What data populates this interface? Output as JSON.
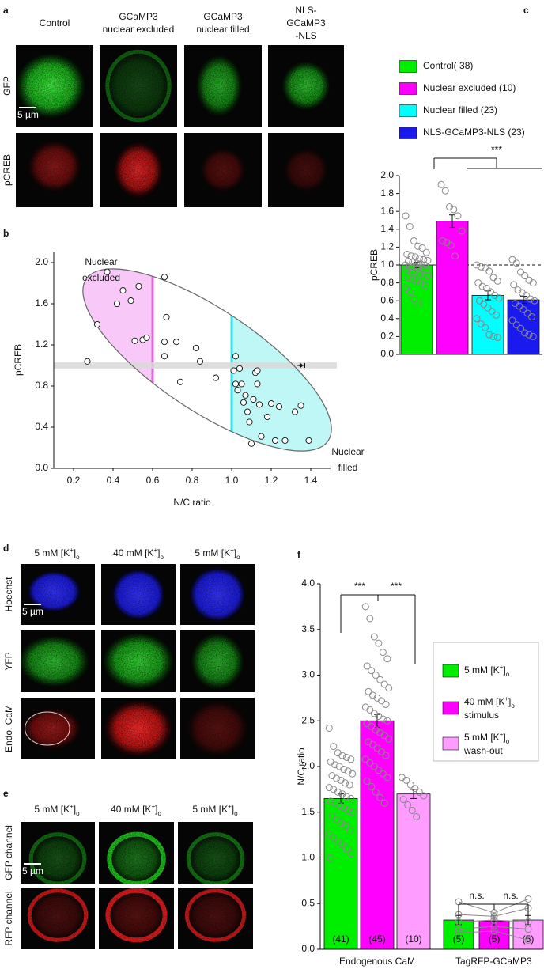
{
  "panel_labels": [
    "a",
    "b",
    "c",
    "d",
    "e",
    "f"
  ],
  "panel_a": {
    "columns": [
      [
        "Control"
      ],
      [
        "GCaMP3",
        "nuclear excluded"
      ],
      [
        "GCaMP3",
        "nuclear filled"
      ],
      [
        "NLS-",
        "GCaMP3",
        "-NLS"
      ]
    ],
    "rows": [
      "GFP",
      "pCREB"
    ],
    "scale_bar": "5 µm"
  },
  "panel_d": {
    "columns": [
      [
        "5 mM [K",
        "+",
        "]",
        "o"
      ],
      [
        "40 mM [K",
        "+",
        "]",
        "o"
      ],
      [
        "5 mM [K",
        "+",
        "]",
        "o"
      ]
    ],
    "rows": [
      "Hoechst",
      "YFP",
      "Endo. CaM"
    ],
    "scale_bar": "5 µm"
  },
  "panel_e": {
    "columns": [
      [
        "5 mM [K",
        "+",
        "]",
        "o"
      ],
      [
        "40 mM [K",
        "+",
        "]",
        "o"
      ],
      [
        "5 mM [K",
        "+",
        "]",
        "o"
      ]
    ],
    "rows": [
      "GFP channel",
      "RFP channel"
    ],
    "scale_bar": "5 µm"
  },
  "chart_data": [
    {
      "type": "scatter",
      "x_label": "N/C ratio",
      "y_label": "pCREB",
      "xlim": [
        0.1,
        1.5
      ],
      "ylim": [
        0,
        2.1
      ],
      "xticks": [
        0.2,
        0.4,
        0.6,
        0.8,
        {
          "value": 1,
          "label": "1.0"
        },
        1.2,
        1.4
      ],
      "yticks": [
        {
          "value": 0,
          "label": "0.0"
        },
        0.4,
        0.8,
        1.2,
        1.6,
        {
          "value": 2,
          "label": "2.0"
        }
      ],
      "x": [
        0.27,
        0.32,
        0.37,
        0.42,
        0.45,
        0.49,
        0.51,
        0.53,
        0.55,
        0.57,
        0.66,
        0.67,
        0.66,
        0.66,
        0.72,
        0.74,
        0.82,
        0.84,
        0.92,
        1.02,
        1.01,
        1.02,
        1.03,
        1.04,
        1.05,
        1.06,
        1.07,
        1.08,
        1.09,
        1.1,
        1.11,
        1.12,
        1.13,
        1.13,
        1.14,
        1.15,
        1.18,
        1.2,
        1.22,
        1.24,
        1.27,
        1.32,
        1.35,
        1.39
      ],
      "y": [
        1.04,
        1.4,
        1.91,
        1.6,
        1.73,
        1.63,
        1.24,
        1.77,
        1.25,
        1.27,
        1.86,
        1.47,
        1.23,
        1.09,
        1.23,
        0.84,
        1.17,
        1.04,
        0.88,
        1.09,
        0.95,
        0.82,
        0.76,
        0.97,
        0.82,
        0.64,
        0.71,
        0.55,
        0.45,
        0.24,
        0.67,
        0.93,
        0.95,
        0.82,
        0.62,
        0.31,
        0.5,
        0.63,
        0.27,
        0.6,
        0.27,
        0.55,
        0.61,
        0.27
      ],
      "color": "#ffffff",
      "thresholds": [
        0.6,
        1.0
      ],
      "threshold_colors": [
        "#e066e0",
        "#33e6f0"
      ],
      "region_colors": [
        "#f8c8f8",
        "#bff7f7"
      ],
      "annotations": [
        [
          "Nuclear",
          "excluded"
        ],
        [
          "Nuclear",
          "filled"
        ]
      ],
      "reference_band": [
        0.97,
        1.03
      ],
      "mean": {
        "x": 1.35,
        "y": 1.0,
        "x_error": 0.02,
        "y_error": 0.02
      }
    },
    {
      "type": "bar",
      "y_label": "pCREB",
      "ylim": [
        0,
        2
      ],
      "yticks": [
        {
          "value": 0,
          "label": "0.0"
        },
        0.2,
        0.4,
        0.6,
        0.8,
        {
          "value": 1,
          "label": "1.0"
        },
        1.2,
        1.4,
        1.6,
        1.8,
        {
          "value": 2,
          "label": "2.0"
        }
      ],
      "reference_line": 1,
      "significance": [
        "***"
      ],
      "series": [
        {
          "name": "Control( 38)",
          "color": "#00ee00",
          "values": [
            1.0
          ],
          "errors": [
            0.03
          ],
          "points": [
            [
              1.55,
              1.43,
              1.27,
              1.21,
              1.19,
              1.14,
              1.12,
              1.1,
              1.09,
              1.07,
              1.06,
              1.05,
              1.04,
              1.03,
              1.02,
              1.01,
              1.0,
              1.0,
              0.99,
              0.98,
              0.97,
              0.96,
              0.95,
              0.94,
              0.93,
              0.92,
              0.9,
              0.89,
              0.88,
              0.86,
              0.84,
              0.82,
              0.8,
              0.77,
              0.74,
              0.7,
              0.62,
              0.57
            ]
          ]
        },
        {
          "name": "Nuclear excluded (10)",
          "color": "#ff00ff",
          "values": [
            1.49
          ],
          "errors": [
            0.07
          ],
          "points": [
            [
              1.9,
              1.83,
              1.65,
              1.62,
              1.55,
              1.38,
              1.27,
              1.25,
              1.22,
              1.1
            ]
          ]
        },
        {
          "name": "Nuclear filled (23)",
          "color": "#00ffff",
          "values": [
            0.66
          ],
          "errors": [
            0.05
          ],
          "points": [
            [
              1.0,
              0.98,
              0.97,
              0.93,
              0.86,
              0.82,
              0.8,
              0.76,
              0.74,
              0.7,
              0.66,
              0.63,
              0.6,
              0.56,
              0.52,
              0.48,
              0.44,
              0.4,
              0.34,
              0.3,
              0.22,
              0.2,
              0.19
            ]
          ]
        },
        {
          "name": "NLS-GCaMP3-NLS (23)",
          "color": "#1a1aee",
          "values": [
            0.61
          ],
          "errors": [
            0.04
          ],
          "points": [
            [
              1.06,
              1.02,
              0.92,
              0.88,
              0.83,
              0.8,
              0.78,
              0.72,
              0.69,
              0.66,
              0.62,
              0.6,
              0.57,
              0.54,
              0.5,
              0.46,
              0.42,
              0.38,
              0.33,
              0.29,
              0.24,
              0.22,
              0.2
            ]
          ]
        }
      ]
    },
    {
      "type": "bar",
      "y_label": "N/C ratio",
      "ylim": [
        0,
        4
      ],
      "yticks": [
        {
          "value": 0,
          "label": "0.0"
        },
        0.5,
        {
          "value": 1,
          "label": "1.0"
        },
        1.5,
        {
          "value": 2,
          "label": "2.0"
        },
        2.5,
        {
          "value": 3,
          "label": "3.0"
        },
        3.5,
        {
          "value": 4,
          "label": "4.0"
        }
      ],
      "categories": [
        "Endogenous CaM",
        "TagRFP-GCaMP3"
      ],
      "paired": [
        false,
        true
      ],
      "significance": [
        "***",
        "***",
        "n.s.",
        "n.s."
      ],
      "series": [
        {
          "name": [
            "5 mM [K",
            "+",
            "]",
            "o"
          ],
          "color": "#00ee00",
          "values": [
            1.65,
            0.32
          ],
          "errors": [
            0.05,
            0.05
          ],
          "n_labels": [
            "(41)",
            "(5)"
          ],
          "points": [
            [
              2.42,
              2.22,
              2.15,
              2.12,
              2.1,
              2.08,
              2.05,
              2.02,
              2.0,
              1.97,
              1.95,
              1.92,
              1.9,
              1.87,
              1.85,
              1.82,
              1.8,
              1.77,
              1.75,
              1.72,
              1.7,
              1.67,
              1.65,
              1.62,
              1.6,
              1.57,
              1.55,
              1.52,
              1.5,
              1.46,
              1.42,
              1.38,
              1.35,
              1.3,
              1.26,
              1.22,
              1.18,
              1.15,
              1.1,
              1.05,
              1.0
            ],
            [
              0.52,
              0.38,
              0.3,
              0.22,
              0.18
            ]
          ]
        },
        {
          "name": [
            "40 mM [K",
            "+",
            "]",
            "o"
          ],
          "name_line2": "stimulus",
          "color": "#ff00ff",
          "values": [
            2.5,
            0.31
          ],
          "errors": [
            0.07,
            0.06
          ],
          "n_labels": [
            "(45)",
            "(5)"
          ],
          "points": [
            [
              3.75,
              3.62,
              3.42,
              3.35,
              3.25,
              3.18,
              3.1,
              3.05,
              3.0,
              2.95,
              2.9,
              2.86,
              2.82,
              2.78,
              2.75,
              2.72,
              2.68,
              2.65,
              2.62,
              2.58,
              2.55,
              2.52,
              2.5,
              2.47,
              2.44,
              2.4,
              2.37,
              2.34,
              2.3,
              2.27,
              2.24,
              2.2,
              2.16,
              2.12,
              2.08,
              2.04,
              2.0,
              1.96,
              1.92,
              1.88,
              1.84,
              1.78,
              1.72,
              1.66,
              1.6
            ],
            [
              0.4,
              0.36,
              0.32,
              0.25,
              0.2
            ]
          ]
        },
        {
          "name": [
            "5 mM [K",
            "+",
            "]",
            "o"
          ],
          "name_line2": "wash-out",
          "color": "#ff9cff",
          "values": [
            1.7,
            0.32
          ],
          "errors": [
            0.05,
            0.05
          ],
          "n_labels": [
            "(10)",
            "(5)"
          ],
          "points": [
            [
              1.88,
              1.85,
              1.8,
              1.76,
              1.72,
              1.68,
              1.64,
              1.58,
              1.52,
              1.45
            ],
            [
              0.55,
              0.45,
              0.3,
              0.22,
              0.1
            ]
          ]
        }
      ]
    }
  ]
}
